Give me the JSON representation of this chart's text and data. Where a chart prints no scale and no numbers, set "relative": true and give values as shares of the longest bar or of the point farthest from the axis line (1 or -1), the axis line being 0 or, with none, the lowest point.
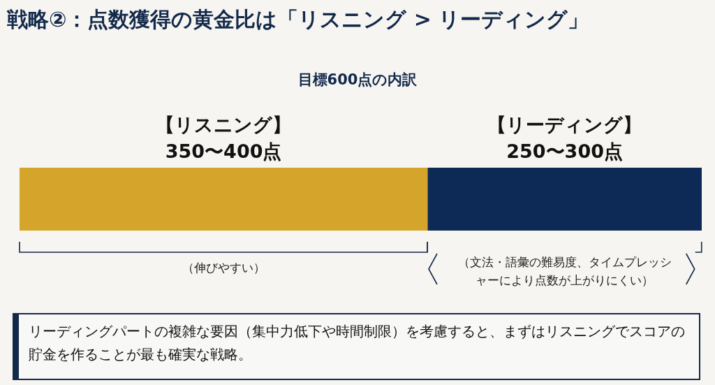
{
  "chart_data": {
    "type": "bar",
    "title": "戦略②：点数獲得の黄金比は「リスニング > リーディング」",
    "subtitle": "目標600点の内訳",
    "orientation": "horizontal",
    "stacked": true,
    "relative": true,
    "legend": false,
    "grid": false,
    "categories": [
      null
    ],
    "series": [
      {
        "name": "【リスニング】",
        "color": "#d4a52a",
        "values": [
          0.598
        ]
      },
      {
        "name": "【リーディング】",
        "color": "#0d2a56",
        "values": [
          0.402
        ]
      }
    ],
    "annotations": [
      "350〜400点",
      "250〜300点",
      "（伸びやすい）",
      "（文法・語彙の難易度、タイムプレッシャーにより点数が上がりにくい）",
      "リーディングパートの複雑な要因（集中力低下や時間制限）を考慮すると、まずはリスニングでスコアの貯金を作ることが最も確実な戦略。"
    ]
  }
}
